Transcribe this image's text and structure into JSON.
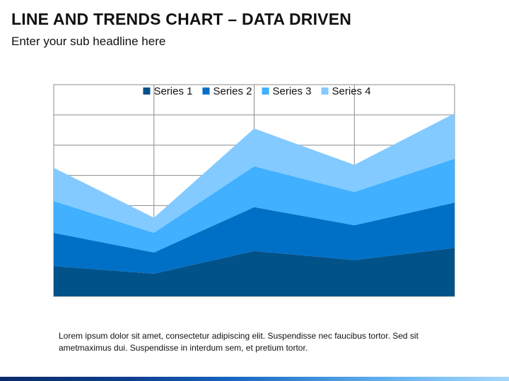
{
  "slide": {
    "title": "LINE AND TRENDS CHART – DATA DRIVEN",
    "subtitle": "Enter your sub headline here",
    "caption": "Lorem ipsum dolor sit amet, consectetur adipiscing elit. Suspendisse nec faucibus tortor. Sed sit ametmaximus dui. Suspendisse in interdum sem, et pretium tortor."
  },
  "chart_data": {
    "type": "area",
    "stacked": true,
    "x": [
      1,
      2,
      3,
      4,
      5
    ],
    "ylim": [
      0,
      7
    ],
    "grid": true,
    "legend_position": "top",
    "series": [
      {
        "name": "Series 1",
        "values": [
          1.0,
          0.75,
          1.5,
          1.2,
          1.6
        ],
        "color": "#02528a"
      },
      {
        "name": "Series 2",
        "values": [
          1.1,
          0.7,
          1.45,
          1.15,
          1.5
        ],
        "color": "#0070c6"
      },
      {
        "name": "Series 3",
        "values": [
          1.05,
          0.65,
          1.35,
          1.1,
          1.45
        ],
        "color": "#40b0ff"
      },
      {
        "name": "Series 4",
        "values": [
          1.1,
          0.5,
          1.25,
          0.9,
          1.5
        ],
        "color": "#82caff"
      }
    ]
  }
}
